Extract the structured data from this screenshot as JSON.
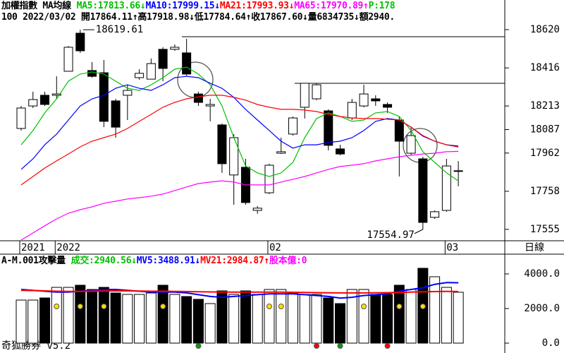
{
  "chart_data": [
    {
      "type": "candlestick",
      "header": [
        {
          "text": "加權指數 MA均線",
          "color": "#000000"
        },
        {
          "text": "MA5:17813.66↓",
          "color": "#00c000"
        },
        {
          "text": "MA10:17999.15↓",
          "color": "#0000ff"
        },
        {
          "text": "MA21:17993.93↓",
          "color": "#ff0000"
        },
        {
          "text": "MA65:17970.89↑",
          "color": "#ff00ff"
        },
        {
          "text": "P:178",
          "color": "#00c000"
        }
      ],
      "subheader": "100 2022/03/02 開17864.11↑高17918.98↓低17784.64↑收17867.60↓量6834735↓額2940.",
      "period": "日線",
      "annotations": [
        "18619.61",
        "17554.97"
      ],
      "categories": [
        "2021",
        null,
        null,
        "2022",
        null,
        null,
        null,
        null,
        null,
        null,
        null,
        null,
        null,
        null,
        null,
        null,
        null,
        null,
        null,
        null,
        null,
        "02",
        null,
        null,
        null,
        null,
        null,
        null,
        null,
        null,
        null,
        null,
        null,
        null,
        null,
        null,
        "03",
        null
      ],
      "open": [
        18093,
        18213,
        18270,
        18270,
        18398,
        18601,
        18402,
        18390,
        18240,
        18270,
        18364,
        18356,
        18515,
        18515,
        18496,
        18277,
        18213,
        18112,
        17845,
        17886,
        17656,
        17750,
        17961,
        18063,
        18206,
        18251,
        18187,
        17984,
        18149,
        18213,
        18251,
        18221,
        18138,
        17961,
        17931,
        17619,
        17656,
        17864.11
      ],
      "high": [
        18213,
        18289,
        18289,
        18371,
        18533,
        18619.61,
        18447,
        18458,
        18251,
        18326,
        18409,
        18466,
        18526,
        18541,
        18571,
        18289,
        18251,
        18119,
        18063,
        17931,
        17679,
        17905,
        18044,
        18157,
        18334,
        18334,
        18195,
        18006,
        18251,
        18326,
        18270,
        18232,
        18157,
        18100,
        17942,
        17656,
        17931,
        17918.98
      ],
      "low": [
        18082,
        18202,
        18213,
        18251,
        18398,
        18496,
        18364,
        18100,
        18044,
        18138,
        18353,
        18356,
        18345,
        18507,
        18375,
        18213,
        18131,
        17856,
        17686,
        17686,
        17638,
        17743,
        17957,
        18055,
        18146,
        18244,
        17976,
        17950,
        18138,
        18206,
        18213,
        18176,
        17837,
        17950,
        17554.97,
        17611,
        17649,
        17784.64
      ],
      "close": [
        18202,
        18247,
        18221,
        18277,
        18526,
        18507,
        18371,
        18131,
        18100,
        18296,
        18387,
        18439,
        18413,
        18526,
        18383,
        18232,
        18221,
        17905,
        18044,
        17698,
        17668,
        17897,
        17969,
        18149,
        18334,
        18326,
        18003,
        17957,
        18232,
        18277,
        18240,
        18206,
        18025,
        18055,
        17592,
        17649,
        17893,
        17867.6
      ],
      "up_color": "#ffffff",
      "down_color": "#000000",
      "series": [
        {
          "name": "MA5",
          "color": "#00c000",
          "values": [
            18006,
            18082,
            18176,
            18251,
            18345,
            18383,
            18394,
            18383,
            18345,
            18307,
            18296,
            18326,
            18364,
            18409,
            18420,
            18383,
            18326,
            18213,
            18044,
            17893,
            17856,
            17837,
            17856,
            17912,
            18044,
            18146,
            18176,
            18157,
            18131,
            18138,
            18176,
            18183,
            18157,
            18082,
            17969,
            17912,
            17856,
            17813.66
          ]
        },
        {
          "name": "MA10",
          "color": "#0000ff",
          "values": [
            17875,
            17931,
            18006,
            18063,
            18138,
            18213,
            18251,
            18270,
            18307,
            18326,
            18307,
            18296,
            18326,
            18364,
            18371,
            18364,
            18334,
            18307,
            18259,
            18195,
            18138,
            18082,
            18025,
            17988,
            18006,
            18006,
            18018,
            18025,
            18044,
            18082,
            18131,
            18146,
            18138,
            18100,
            18052,
            18025,
            18006,
            17999.15
          ]
        },
        {
          "name": "MA21",
          "color": "#ff0000",
          "values": [
            17792,
            17837,
            17882,
            17920,
            17957,
            17995,
            18025,
            18044,
            18063,
            18093,
            18131,
            18168,
            18206,
            18232,
            18251,
            18262,
            18270,
            18270,
            18259,
            18244,
            18221,
            18206,
            18195,
            18195,
            18191,
            18183,
            18168,
            18157,
            18149,
            18146,
            18146,
            18142,
            18138,
            18100,
            18055,
            18025,
            18006,
            17993.93
          ]
        },
        {
          "name": "MA65",
          "color": "#ff00ff",
          "values": [
            17498,
            17536,
            17574,
            17611,
            17641,
            17660,
            17675,
            17694,
            17705,
            17717,
            17724,
            17732,
            17743,
            17762,
            17781,
            17799,
            17807,
            17814,
            17807,
            17792,
            17792,
            17792,
            17807,
            17822,
            17837,
            17856,
            17875,
            17890,
            17897,
            17905,
            17920,
            17931,
            17942,
            17950,
            17957,
            17961,
            17969,
            17970.89
          ]
        }
      ],
      "ylim": [
        17498,
        18778
      ],
      "yticks": [
        18620,
        18416,
        18213,
        18087,
        17962,
        17758,
        17555
      ]
    },
    {
      "type": "bar",
      "header": [
        {
          "text": "A-M.001攻擊量",
          "color": "#000000"
        },
        {
          "text": "成交:2940.56↓",
          "color": "#00c000"
        },
        {
          "text": "MV5:3488.91↓",
          "color": "#0000ff"
        },
        {
          "text": "MV21:2984.87↑",
          "color": "#ff0000"
        },
        {
          "text": "股本億:0",
          "color": "#ff00ff"
        }
      ],
      "footer": "奇狐勝券 v5.2",
      "values": [
        2490,
        2490,
        2612,
        3224,
        3224,
        3347,
        3102,
        3224,
        2898,
        2816,
        2816,
        2898,
        3347,
        2816,
        2694,
        2531,
        2286,
        3020,
        2816,
        3020,
        2816,
        3102,
        3102,
        2898,
        2816,
        2816,
        2612,
        2286,
        3102,
        3102,
        2816,
        2816,
        3347,
        3102,
        4327,
        3837,
        3224,
        2940.56
      ],
      "series": [
        {
          "name": "MV5",
          "color": "#0000ff",
          "values": [
            3100,
            3050,
            3000,
            2950,
            2950,
            3000,
            3050,
            3100,
            3100,
            3050,
            3000,
            2950,
            2950,
            2950,
            2900,
            2800,
            2700,
            2650,
            2700,
            2750,
            2800,
            2850,
            2850,
            2850,
            2800,
            2750,
            2700,
            2600,
            2650,
            2750,
            2800,
            2850,
            3000,
            3100,
            3200,
            3400,
            3500,
            3488.91
          ]
        },
        {
          "name": "MV21",
          "color": "#ff0000",
          "values": [
            3050,
            3040,
            3020,
            3000,
            2990,
            2990,
            3000,
            3010,
            3020,
            3020,
            3010,
            3000,
            3000,
            2990,
            2980,
            2970,
            2960,
            2950,
            2950,
            2950,
            2950,
            2950,
            2950,
            2940,
            2930,
            2920,
            2910,
            2900,
            2900,
            2900,
            2910,
            2920,
            2930,
            2950,
            2970,
            2980,
            2990,
            2984.87
          ]
        }
      ],
      "ylim": [
        -367,
        4408
      ],
      "yticks": [
        {
          "value": 4000,
          "label": "4000.0"
        },
        {
          "value": 2000,
          "label": "2000.0"
        },
        {
          "value": 0,
          "label": "0.0"
        }
      ]
    }
  ]
}
